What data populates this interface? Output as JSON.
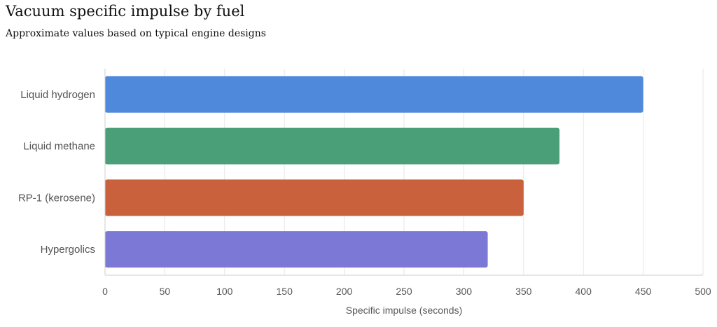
{
  "chart_data": {
    "type": "bar",
    "orientation": "horizontal",
    "title": "Vacuum specific impulse by fuel",
    "subtitle": "Approximate values based on typical engine designs",
    "xlabel": "Specific impulse (seconds)",
    "ylabel": "",
    "categories": [
      "Liquid hydrogen",
      "Liquid methane",
      "RP-1 (kerosene)",
      "Hypergolics"
    ],
    "values": [
      450,
      380,
      350,
      320
    ],
    "colors": [
      "#4e89db",
      "#4a9e78",
      "#c9623c",
      "#7b78d6"
    ],
    "xlim": [
      0,
      500
    ],
    "xticks": [
      0,
      50,
      100,
      150,
      200,
      250,
      300,
      350,
      400,
      450,
      500
    ],
    "grid": true,
    "legend": "none"
  }
}
